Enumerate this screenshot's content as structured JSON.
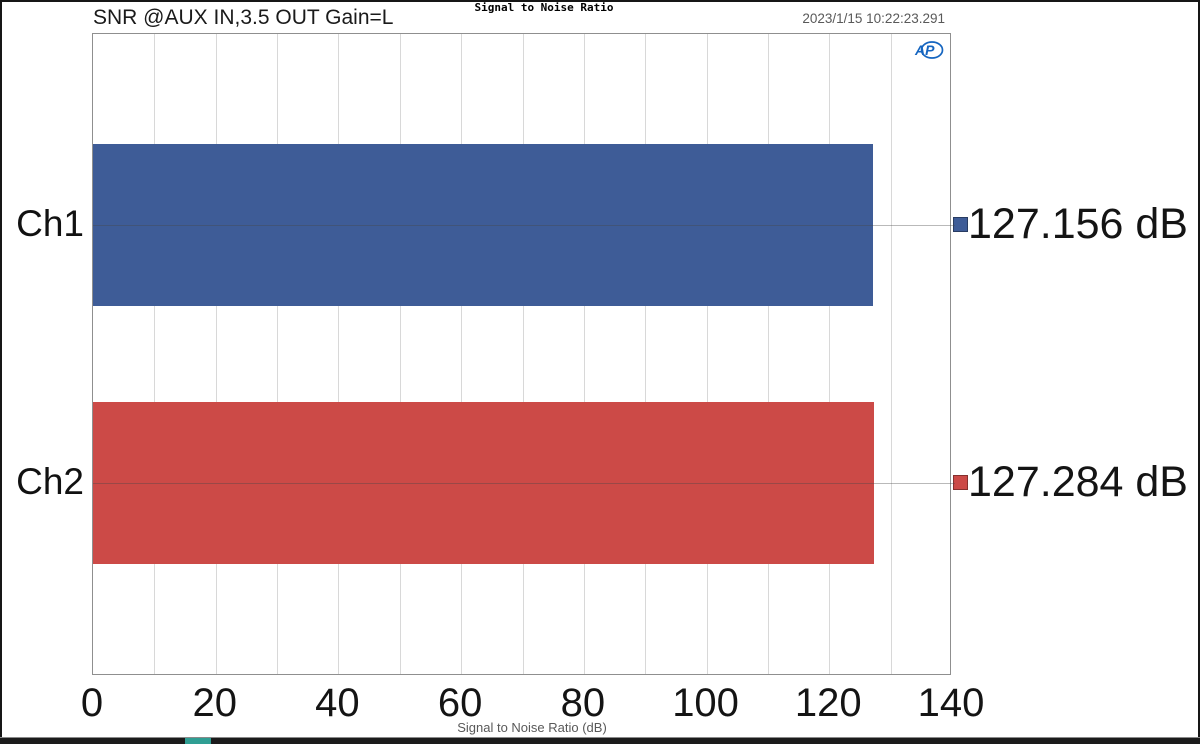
{
  "window": {
    "timestamp": "2023/1/15 10:22:23.291",
    "bottom_accent_color": "#2f9e93"
  },
  "header": {
    "chart_label": "SNR @AUX IN,3.5 OUT Gain=L",
    "logo": "audio-precision-ap-logo",
    "logo_color": "#1565c0"
  },
  "chart_data": {
    "type": "bar",
    "orientation": "horizontal",
    "title": "Signal to Noise Ratio",
    "categories": [
      "Ch1",
      "Ch2"
    ],
    "values": [
      127.156,
      127.284
    ],
    "value_labels": [
      "127.156 dB",
      "127.284 dB"
    ],
    "series_colors": [
      "#3e5c97",
      "#cc4a47"
    ],
    "unit": "dB",
    "xlabel": "Signal to Noise Ratio (dB)",
    "xlim": [
      0,
      140
    ],
    "x_ticks": [
      0,
      20,
      40,
      60,
      80,
      100,
      120,
      140
    ],
    "minor_grid_step": 10,
    "grid": "vertical-minor",
    "legend_position": "right-of-plot"
  }
}
